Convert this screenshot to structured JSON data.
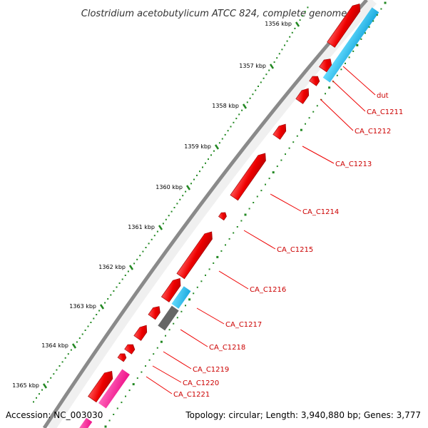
{
  "title": "Clostridium acetobutylicum ATCC 824, complete genome",
  "accession_label": "Accession: NC_003030",
  "summary_label": "Topology: circular; Length: 3,940,880 bp; Genes: 3,777",
  "colors": {
    "backbone": "#8a8a8a",
    "gene_forward": "#ff0000",
    "gene_pseudo": "#666666",
    "gene_rna": "#ff3399",
    "cds": "#22bbee",
    "tick": "#228822",
    "label_line": "#ee0000"
  },
  "ticks": [
    {
      "label": "1356 kbp"
    },
    {
      "label": "1357 kbp"
    },
    {
      "label": "1358 kbp"
    },
    {
      "label": "1359 kbp"
    },
    {
      "label": "1360 kbp"
    },
    {
      "label": "1361 kbp"
    },
    {
      "label": "1362 kbp"
    },
    {
      "label": "1363 kbp"
    },
    {
      "label": "1364 kbp"
    },
    {
      "label": "1365 kbp"
    }
  ],
  "genes": [
    {
      "name": "dut"
    },
    {
      "name": "CA_C1211"
    },
    {
      "name": "CA_C1212"
    },
    {
      "name": "CA_C1213"
    },
    {
      "name": "CA_C1214"
    },
    {
      "name": "CA_C1215"
    },
    {
      "name": "CA_C1216"
    },
    {
      "name": "CA_C1217"
    },
    {
      "name": "CA_C1218"
    },
    {
      "name": "CA_C1219"
    },
    {
      "name": "CA_C1220"
    },
    {
      "name": "CA_C1221"
    }
  ]
}
